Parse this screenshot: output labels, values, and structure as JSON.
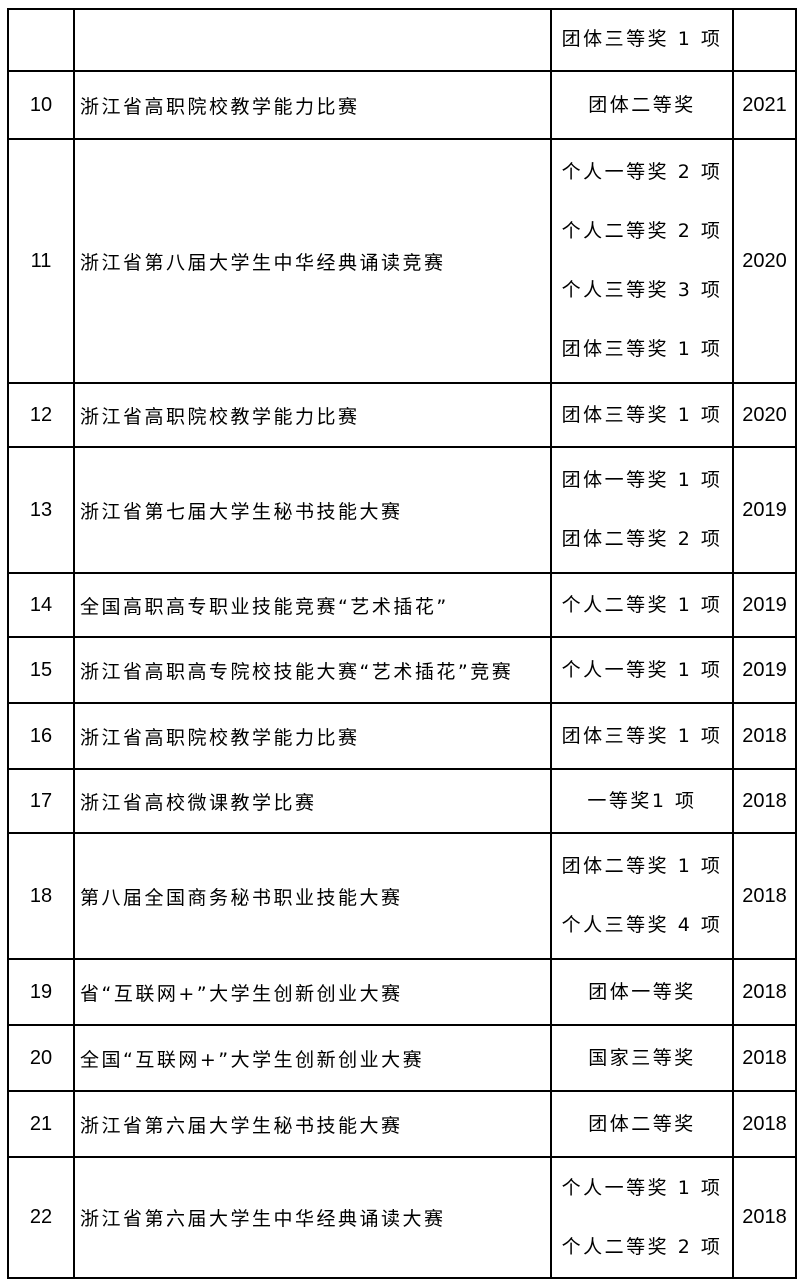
{
  "rows": [
    {
      "no": "",
      "name": "",
      "awards": [
        "团体三等奖 1 项"
      ],
      "year": ""
    },
    {
      "no": "10",
      "name": "浙江省高职院校教学能力比赛",
      "awards": [
        "团体二等奖"
      ],
      "year": "2021"
    },
    {
      "no": "11",
      "name": "浙江省第八届大学生中华经典诵读竞赛",
      "awards": [
        "个人一等奖 2 项",
        "个人二等奖 2 项",
        "个人三等奖 3 项",
        "团体三等奖 1 项"
      ],
      "year": "2020"
    },
    {
      "no": "12",
      "name": "浙江省高职院校教学能力比赛",
      "awards": [
        "团体三等奖 1 项"
      ],
      "year": "2020"
    },
    {
      "no": "13",
      "name": "浙江省第七届大学生秘书技能大赛",
      "awards": [
        "团体一等奖 1 项",
        "团体二等奖 2 项"
      ],
      "year": "2019"
    },
    {
      "no": "14",
      "name": "全国高职高专职业技能竞赛“艺术插花”",
      "awards": [
        "个人二等奖 1 项"
      ],
      "year": "2019"
    },
    {
      "no": "15",
      "name": "浙江省高职高专院校技能大赛“艺术插花”竞赛",
      "awards": [
        "个人一等奖 1 项"
      ],
      "year": "2019"
    },
    {
      "no": "16",
      "name": "浙江省高职院校教学能力比赛",
      "awards": [
        "团体三等奖 1 项"
      ],
      "year": "2018"
    },
    {
      "no": "17",
      "name": "浙江省高校微课教学比赛",
      "awards": [
        "一等奖1 项"
      ],
      "year": "2018"
    },
    {
      "no": "18",
      "name": "第八届全国商务秘书职业技能大赛",
      "awards": [
        "团体二等奖 1 项",
        "个人三等奖 4 项"
      ],
      "year": "2018"
    },
    {
      "no": "19",
      "name": "省“互联网+”大学生创新创业大赛",
      "awards": [
        "团体一等奖"
      ],
      "year": "2018"
    },
    {
      "no": "20",
      "name": "全国“互联网+”大学生创新创业大赛",
      "awards": [
        "国家三等奖"
      ],
      "year": "2018"
    },
    {
      "no": "21",
      "name": "浙江省第六届大学生秘书技能大赛",
      "awards": [
        "团体二等奖"
      ],
      "year": "2018"
    },
    {
      "no": "22",
      "name": "浙江省第六届大学生中华经典诵读大赛",
      "awards": [
        "个人一等奖 1 项",
        "个人二等奖 2 项"
      ],
      "year": "2018"
    }
  ]
}
